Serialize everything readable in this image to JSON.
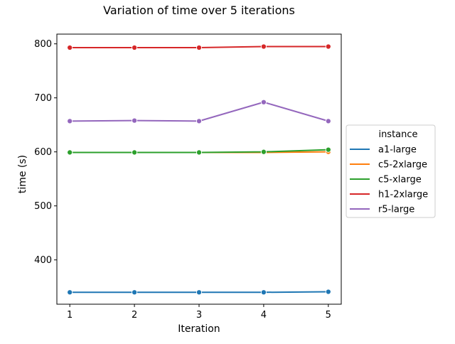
{
  "chart_data": {
    "type": "line",
    "title": "Variation of time over 5 iterations",
    "xlabel": "Iteration",
    "ylabel": "time (s)",
    "x": [
      1,
      2,
      3,
      4,
      5
    ],
    "x_ticks": [
      1,
      2,
      3,
      4,
      5
    ],
    "y_ticks": [
      400,
      500,
      600,
      700,
      800
    ],
    "xlim": [
      0.8,
      5.2
    ],
    "ylim": [
      318,
      818
    ],
    "grid": false,
    "legend": {
      "title": "instance",
      "placement": "center-right, outside plot"
    },
    "series": [
      {
        "name": "a1-large",
        "color": "#1f77b4",
        "values": [
          340,
          340,
          340,
          340,
          341
        ]
      },
      {
        "name": "c5-2xlarge",
        "color": "#ff7f0e",
        "values": [
          599,
          599,
          599,
          599,
          600
        ]
      },
      {
        "name": "c5-xlarge",
        "color": "#2ca02c",
        "values": [
          599,
          599,
          599,
          600,
          604
        ]
      },
      {
        "name": "h1-2xlarge",
        "color": "#d62728",
        "values": [
          793,
          793,
          793,
          795,
          795
        ]
      },
      {
        "name": "r5-large",
        "color": "#9467bd",
        "values": [
          657,
          658,
          657,
          692,
          657
        ]
      }
    ]
  }
}
